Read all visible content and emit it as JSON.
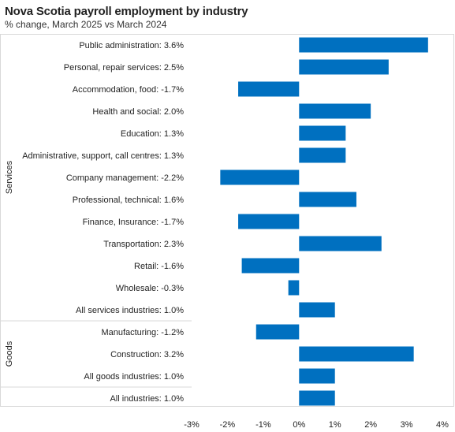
{
  "title": "Nova Scotia payroll employment by industry",
  "subtitle": "% change, March 2025 vs March 2024",
  "chart_data": {
    "type": "bar",
    "orientation": "horizontal",
    "title": "Nova Scotia payroll employment by industry",
    "subtitle": "% change, March 2025 vs March 2024",
    "xlim": [
      -3,
      4
    ],
    "x_ticks": [
      "-3%",
      "-2%",
      "-1%",
      "0%",
      "1%",
      "2%",
      "3%",
      "4%"
    ],
    "bar_color": "#0070c0",
    "grid": false,
    "groups": [
      {
        "name": "Services",
        "count": 13
      },
      {
        "name": "Goods",
        "count": 3
      },
      {
        "name": "",
        "count": 1
      }
    ],
    "categories": [
      "Public administration: 3.6%",
      "Personal, repair services: 2.5%",
      "Accommodation, food: -1.7%",
      "Health and social: 2.0%",
      "Education: 1.3%",
      "Administrative, support, call centres: 1.3%",
      "Company management: -2.2%",
      "Professional, technical: 1.6%",
      "Finance, Insurance: -1.7%",
      "Transportation: 2.3%",
      "Retail: -1.6%",
      "Wholesale: -0.3%",
      "All services industries: 1.0%",
      "Manufacturing: -1.2%",
      "Construction: 3.2%",
      "All goods industries: 1.0%",
      "All industries: 1.0%"
    ],
    "values": [
      3.6,
      2.5,
      -1.7,
      2.0,
      1.3,
      1.3,
      -2.2,
      1.6,
      -1.7,
      2.3,
      -1.6,
      -0.3,
      1.0,
      -1.2,
      3.2,
      1.0,
      1.0
    ]
  }
}
